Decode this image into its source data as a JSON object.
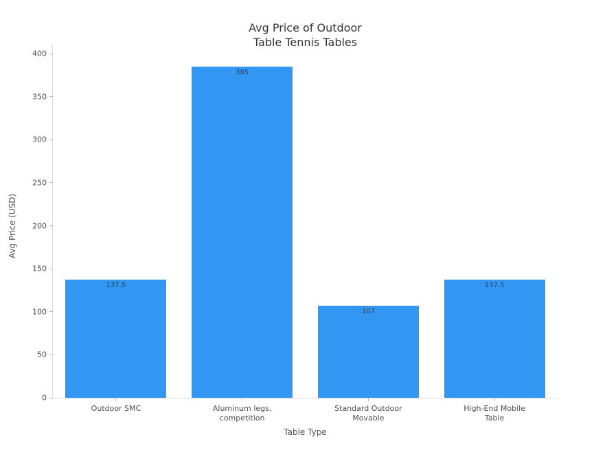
{
  "chart_data": {
    "type": "bar",
    "title": "Avg Price of Outdoor\nTable Tennis Tables",
    "xlabel": "Table Type",
    "ylabel": "Avg Price (USD)",
    "categories": [
      "Outdoor SMC",
      "Aluminum legs,\ncompetition",
      "Standard Outdoor\nMovable",
      "High-End Mobile\nTable"
    ],
    "values": [
      137.5,
      385,
      107,
      137.5
    ],
    "value_labels": [
      "137.5",
      "385",
      "107",
      "137.5"
    ],
    "ylim": [
      0,
      400
    ],
    "yticks": [
      0,
      50,
      100,
      150,
      200,
      250,
      300,
      350,
      400
    ],
    "grid": false,
    "legend": "none",
    "colors": {
      "bar_fill": "#3296f3",
      "bar_value_text": "#2a3f5f",
      "axis_line": "#dcdcdc",
      "tick_mark": "#b7b7b7",
      "tick_text": "#4c4c4c",
      "title_text": "#333333",
      "axis_title_text": "#555555",
      "background": "#ffffff"
    },
    "bar_width_fraction": 0.8
  }
}
